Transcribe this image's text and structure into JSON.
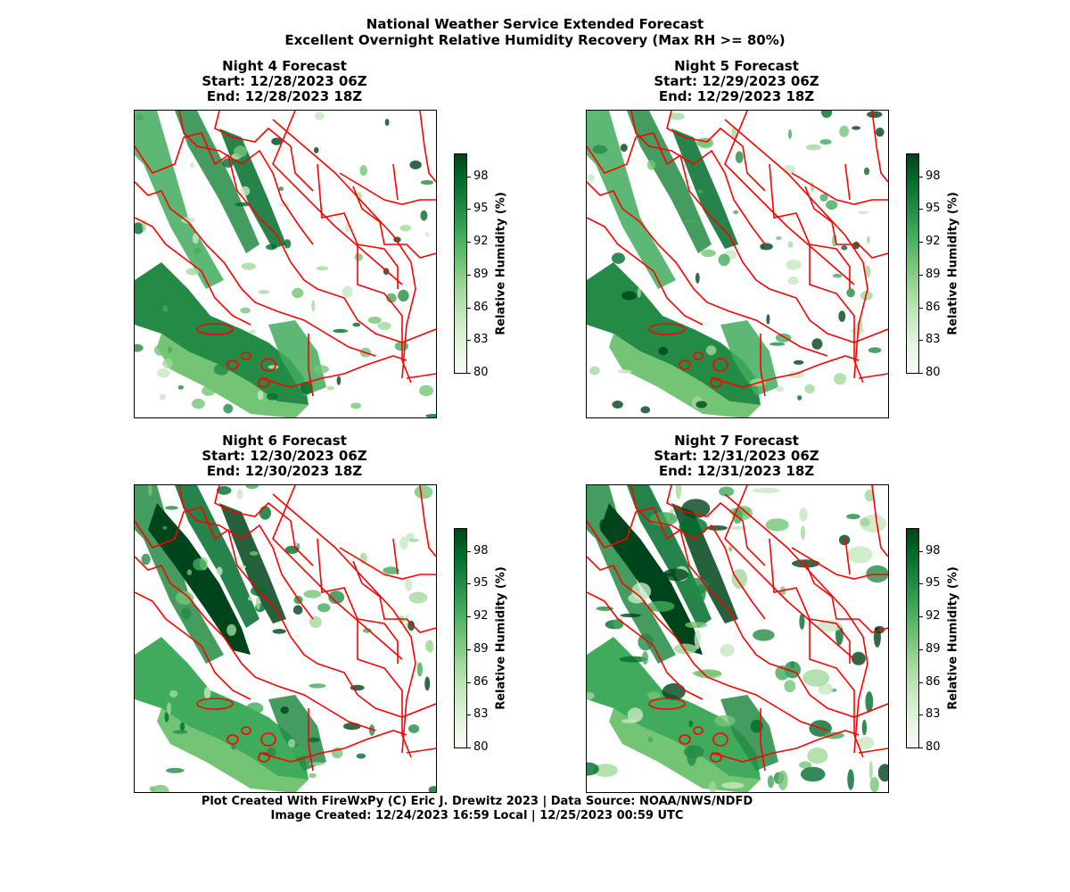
{
  "header": {
    "title_line1": "National Weather Service Extended Forecast",
    "title_line2": "Excellent Overnight Relative Humidity Recovery (Max RH >= 80%)"
  },
  "panels": [
    {
      "night": "Night 4 Forecast",
      "start": "Start: 12/28/2023 06Z",
      "end": "End: 12/28/2023 18Z"
    },
    {
      "night": "Night 5 Forecast",
      "start": "Start: 12/29/2023 06Z",
      "end": "End: 12/29/2023 18Z"
    },
    {
      "night": "Night 6 Forecast",
      "start": "Start: 12/30/2023 06Z",
      "end": "End: 12/30/2023 18Z"
    },
    {
      "night": "Night 7 Forecast",
      "start": "Start: 12/31/2023 06Z",
      "end": "End: 12/31/2023 18Z"
    }
  ],
  "colorbar": {
    "label": "Relative Humidity (%)",
    "ticks": [
      "98",
      "95",
      "92",
      "89",
      "86",
      "83",
      "80"
    ],
    "min": 80,
    "max": 100,
    "colormap": [
      "#f7fcf5",
      "#e5f5e0",
      "#c7e9c0",
      "#a1d99b",
      "#74c476",
      "#41ab5d",
      "#238b45",
      "#006d2c",
      "#00441b"
    ]
  },
  "boundary_color": "#ff0000",
  "footer": {
    "line1": "Plot Created With FireWxPy (C) Eric J. Drewitz 2023 | Data Source: NOAA/NWS/NDFD",
    "line2": "Image Created: 12/24/2023 16:59 Local | 12/25/2023 00:59 UTC"
  }
}
